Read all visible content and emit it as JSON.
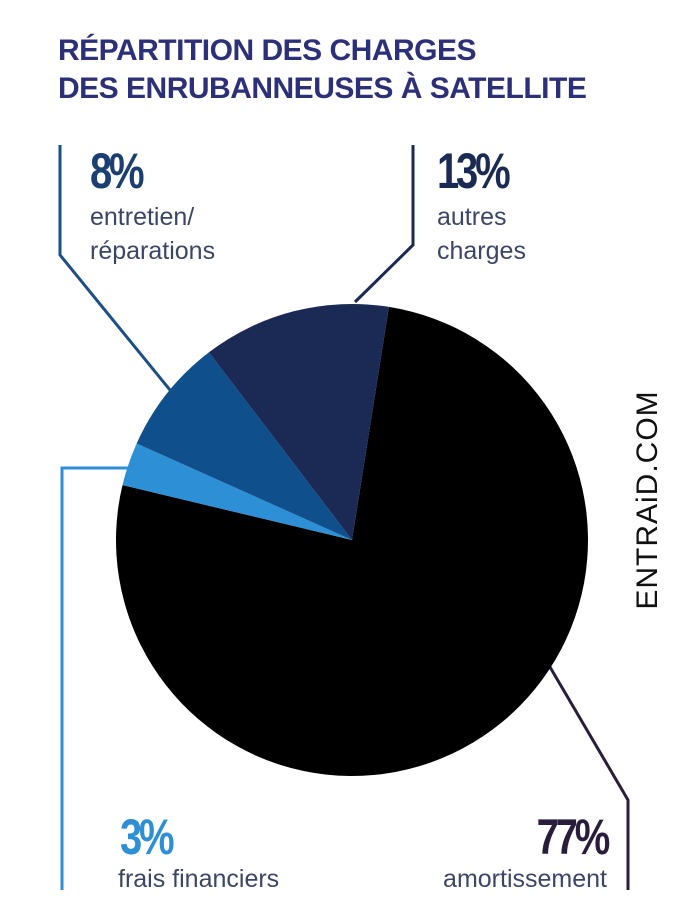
{
  "chart_data": {
    "type": "pie",
    "title": [
      "RÉPARTITION DES CHARGES",
      "DES ENRUBANNEUSES À SATELLITE"
    ],
    "categories": [
      "amortissement",
      "frais financiers",
      "entretien/ réparations",
      "autres charges"
    ],
    "values": [
      77,
      3,
      8,
      13
    ],
    "value_labels": [
      "77%",
      "3%",
      "8%",
      "13%"
    ],
    "colors": [
      "#000000",
      "#2d8fd5",
      "#0e4f8c",
      "#1b2a55"
    ],
    "watermark": "ENTRAiD.COM"
  }
}
